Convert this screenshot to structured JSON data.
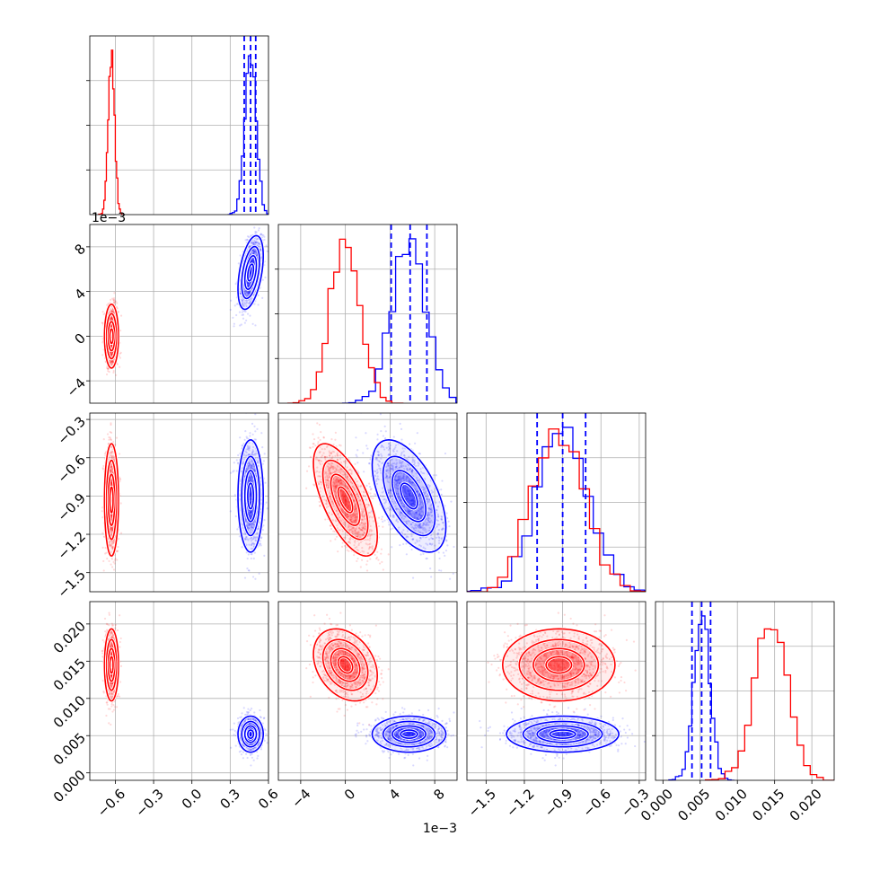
{
  "chart_data": {
    "type": "corner",
    "grid": true,
    "colors": {
      "series_a": "#ff0000",
      "series_b": "#0000ff",
      "grid": "#b0b0b0",
      "frame": "#000000"
    },
    "parameters": [
      {
        "range": [
          -0.8,
          0.6
        ],
        "ticks": [
          -0.6,
          -0.3,
          0.0,
          0.3,
          0.6
        ],
        "tick_labels": [
          "−0.6",
          "−0.3",
          "0.0",
          "0.3",
          "0.6"
        ],
        "offset_label": "1e−3"
      },
      {
        "range": [
          -6,
          10
        ],
        "ticks": [
          -4,
          0,
          4,
          8
        ],
        "tick_labels": [
          "−4",
          "0",
          "4",
          "8"
        ],
        "offset_label": "1e−3",
        "x_offset_label": "1e−3"
      },
      {
        "range": [
          -1.65,
          -0.25
        ],
        "ticks": [
          -1.5,
          -1.2,
          -0.9,
          -0.6,
          -0.3
        ],
        "tick_labels": [
          "−1.5",
          "−1.2",
          "−0.9",
          "−0.6",
          "−0.3"
        ]
      },
      {
        "range": [
          -0.001,
          0.023
        ],
        "ticks": [
          0.0,
          0.005,
          0.01,
          0.015,
          0.02
        ],
        "tick_labels": [
          "0.000",
          "0.005",
          "0.010",
          "0.015",
          "0.020"
        ]
      }
    ],
    "series": [
      {
        "color": "#ff0000",
        "mean": [
          -0.63,
          0.0,
          -0.93,
          0.0145
        ],
        "sd": [
          0.025,
          1.3,
          0.2,
          0.0022
        ],
        "corr": {
          "0-1": 0.0,
          "0-2": 0.0,
          "0-3": 0.0,
          "1-2": -0.65,
          "1-3": -0.3,
          "2-3": 0.0
        }
      },
      {
        "color": "#0000ff",
        "mean": [
          0.46,
          5.7,
          -0.9,
          0.0052
        ],
        "sd": [
          0.045,
          1.5,
          0.2,
          0.0011
        ],
        "corr": {
          "0-1": 0.45,
          "0-2": 0.0,
          "0-3": 0.0,
          "1-2": -0.55,
          "1-3": 0.0,
          "2-3": 0.0
        },
        "quantiles": [
          [
            0.41,
            0.46,
            0.5
          ],
          [
            4.1,
            5.8,
            7.3
          ],
          [
            -1.1,
            -0.9,
            -0.72
          ],
          [
            0.0039,
            0.0052,
            0.0064
          ]
        ]
      }
    ]
  }
}
